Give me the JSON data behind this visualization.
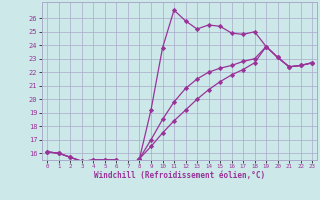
{
  "xlabel": "Windchill (Refroidissement éolien,°C)",
  "bg_color": "#cce8e8",
  "grid_color": "#aaaacc",
  "line_color": "#993399",
  "xlim": [
    -0.5,
    23.4
  ],
  "ylim": [
    15.5,
    27.2
  ],
  "xticks": [
    0,
    1,
    2,
    3,
    4,
    5,
    6,
    7,
    8,
    9,
    10,
    11,
    12,
    13,
    14,
    15,
    16,
    17,
    18,
    19,
    20,
    21,
    22,
    23
  ],
  "yticks": [
    16,
    17,
    18,
    19,
    20,
    21,
    22,
    23,
    24,
    25,
    26
  ],
  "series1_x": [
    0,
    1,
    2,
    3,
    4,
    5,
    6,
    7,
    8,
    9,
    10,
    11,
    12,
    13,
    14,
    15,
    16,
    17,
    18,
    19,
    20,
    21,
    22,
    23
  ],
  "series1_y": [
    16.1,
    16.0,
    15.7,
    15.4,
    15.5,
    15.5,
    15.5,
    15.0,
    15.6,
    19.2,
    23.8,
    26.6,
    25.8,
    25.2,
    25.5,
    25.4,
    24.9,
    24.8,
    25.0,
    23.9,
    23.1,
    22.4,
    22.5,
    22.7
  ],
  "series2_x": [
    0,
    1,
    2,
    3,
    4,
    5,
    6,
    7,
    8,
    9,
    10,
    11,
    12,
    13,
    14,
    15,
    16,
    17,
    18,
    19,
    20,
    21,
    22,
    23
  ],
  "series2_y": [
    16.1,
    16.0,
    15.7,
    15.4,
    15.5,
    15.5,
    15.5,
    15.0,
    15.6,
    16.5,
    17.5,
    18.4,
    19.2,
    20.0,
    20.7,
    21.3,
    21.8,
    22.2,
    22.7,
    23.9,
    23.1,
    22.4,
    22.5,
    22.7
  ],
  "series3_x": [
    0,
    1,
    2,
    3,
    4,
    5,
    6,
    7,
    8,
    9,
    10,
    11,
    12,
    13,
    14,
    15,
    16,
    17,
    18,
    19,
    20,
    21,
    22,
    23
  ],
  "series3_y": [
    16.1,
    16.0,
    15.7,
    15.4,
    15.5,
    15.5,
    15.5,
    15.0,
    15.6,
    17.0,
    18.5,
    19.8,
    20.8,
    21.5,
    22.0,
    22.3,
    22.5,
    22.8,
    23.0,
    23.9,
    23.1,
    22.4,
    22.5,
    22.7
  ],
  "marker": "D",
  "markersize": 2.2,
  "linewidth": 0.9
}
